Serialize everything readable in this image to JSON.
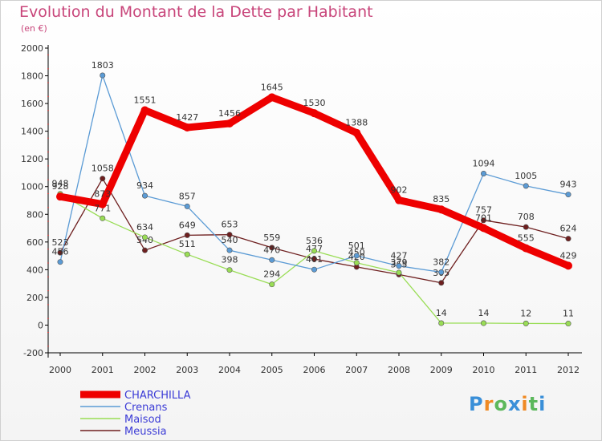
{
  "title": "Evolution du Montant de la Dette par Habitant",
  "subtitle": "(en €)",
  "logo_text": "Proxiti",
  "chart_data": {
    "type": "line",
    "x": [
      "2000",
      "2001",
      "2002",
      "2003",
      "2004",
      "2005",
      "2006",
      "2007",
      "2008",
      "2009",
      "2010",
      "2011",
      "2012"
    ],
    "ylim": [
      -200,
      2000
    ],
    "yticks": [
      -200,
      0,
      200,
      400,
      600,
      800,
      1000,
      1200,
      1400,
      1600,
      1800,
      2000
    ],
    "grid": false,
    "legend_position": "bottom-left",
    "series": [
      {
        "name": "CHARCHILLA",
        "color": "#ee0000",
        "values": [
          928,
          873,
          1551,
          1427,
          1456,
          1645,
          1530,
          1388,
          902,
          835,
          701,
          555,
          429
        ]
      },
      {
        "name": "Crenans",
        "color": "#5b9bd5",
        "values": [
          456,
          1803,
          934,
          857,
          540,
          470,
          401,
          501,
          427,
          382,
          1094,
          1005,
          943
        ]
      },
      {
        "name": "Maisod",
        "color": "#99dd55",
        "values": [
          948,
          771,
          634,
          511,
          398,
          294,
          536,
          450,
          379,
          14,
          14,
          12,
          11
        ]
      },
      {
        "name": "Meussia",
        "color": "#6e1f1f",
        "values": [
          523,
          1058,
          540,
          649,
          653,
          559,
          477,
          420,
          365,
          305,
          757,
          708,
          624
        ]
      }
    ]
  }
}
